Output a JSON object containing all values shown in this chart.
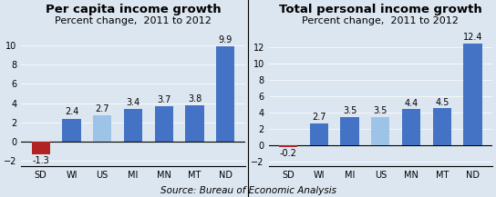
{
  "left": {
    "title": "Per capita income growth",
    "subtitle": "Percent change,  2011 to 2012",
    "categories": [
      "SD",
      "WI",
      "US",
      "MI",
      "MN",
      "MT",
      "ND"
    ],
    "values": [
      -1.3,
      2.4,
      2.7,
      3.4,
      3.7,
      3.8,
      9.9
    ],
    "colors": [
      "#b22222",
      "#4472c4",
      "#9dc3e6",
      "#4472c4",
      "#4472c4",
      "#4472c4",
      "#4472c4"
    ],
    "ylim": [
      -2.5,
      11.5
    ],
    "yticks": [
      -2,
      0,
      2,
      4,
      6,
      8,
      10
    ]
  },
  "right": {
    "title": "Total personal income growth",
    "subtitle": "Percent change,  2011 to 2012",
    "categories": [
      "SD",
      "WI",
      "MI",
      "US",
      "MN",
      "MT",
      "ND"
    ],
    "values": [
      -0.2,
      2.7,
      3.5,
      3.5,
      4.4,
      4.5,
      12.4
    ],
    "colors": [
      "#b22222",
      "#4472c4",
      "#4472c4",
      "#9dc3e6",
      "#4472c4",
      "#4472c4",
      "#4472c4"
    ],
    "ylim": [
      -2.5,
      14.0
    ],
    "yticks": [
      -2,
      0,
      2,
      4,
      6,
      8,
      10,
      12
    ]
  },
  "source": "Source: Bureau of Economic Analysis",
  "bg_color": "#dce6f1",
  "title_fontsize": 9.5,
  "subtitle_fontsize": 8.0,
  "label_fontsize": 7.0,
  "tick_fontsize": 7.0,
  "source_fontsize": 7.5
}
